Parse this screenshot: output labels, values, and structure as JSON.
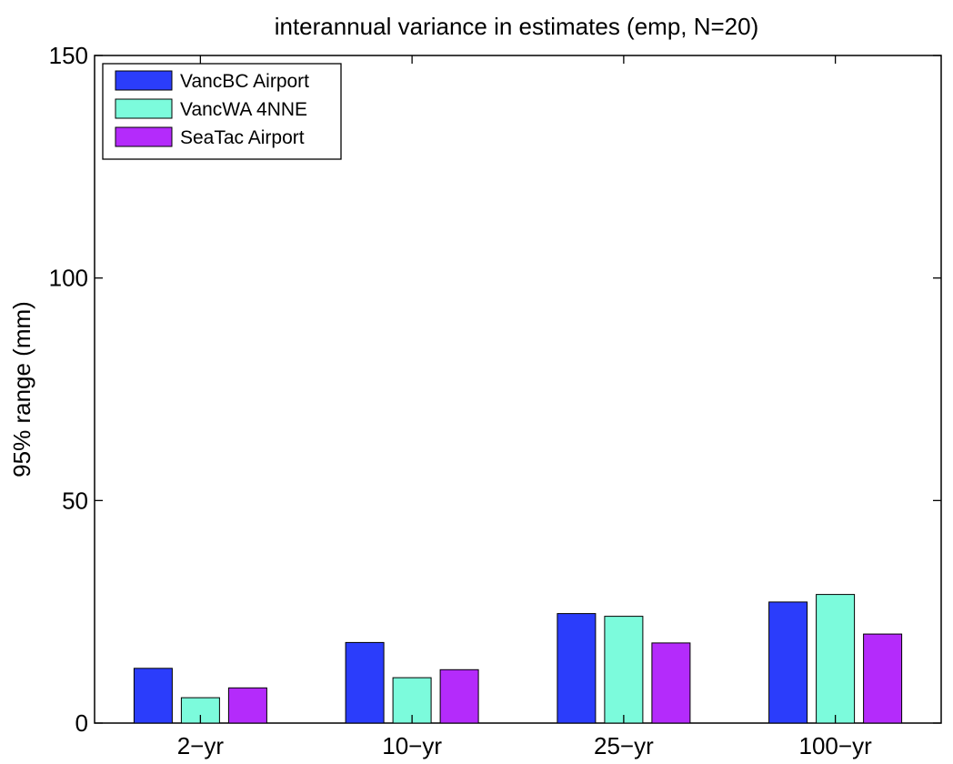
{
  "chart_data": {
    "type": "bar",
    "title": "interannual variance in estimates (emp, N=20)",
    "xlabel": "",
    "ylabel": "95% range (mm)",
    "categories": [
      "2−yr",
      "10−yr",
      "25−yr",
      "100−yr"
    ],
    "series": [
      {
        "name": "VancBC Airport",
        "color": "#2b3dfb",
        "values": [
          12.3,
          18.1,
          24.6,
          27.2
        ]
      },
      {
        "name": "VancWA 4NNE",
        "color": "#7cfbdc",
        "values": [
          5.7,
          10.2,
          24.0,
          28.9
        ]
      },
      {
        "name": "SeaTac Airport",
        "color": "#b42bfb",
        "values": [
          7.9,
          12.0,
          18.0,
          20.0
        ]
      }
    ],
    "ylim": [
      0,
      150
    ],
    "yticks": [
      0,
      50,
      100,
      150
    ],
    "grid": false,
    "legend_position": "top-left"
  }
}
